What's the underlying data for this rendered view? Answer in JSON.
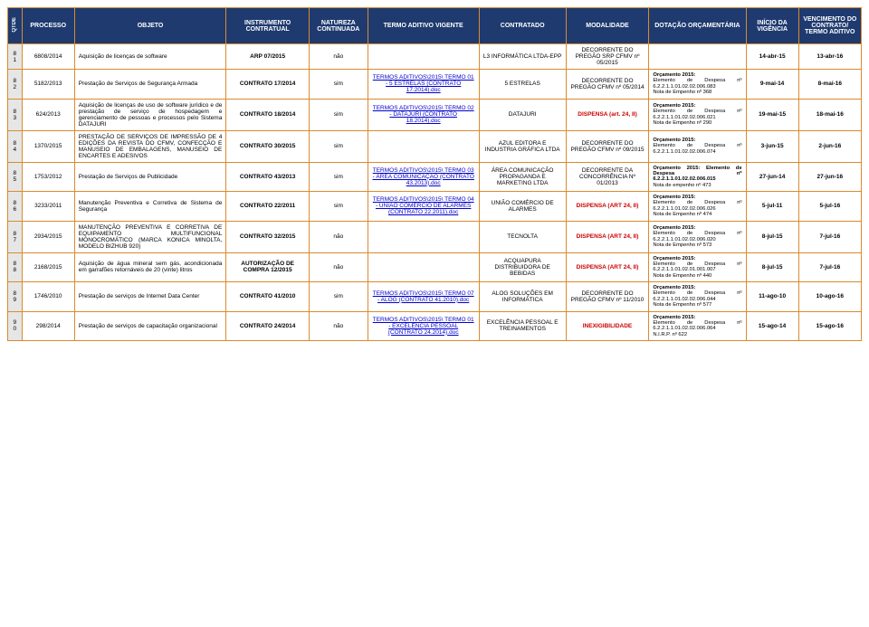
{
  "headers": {
    "qtde": "QTDE",
    "processo": "PROCESSO",
    "objeto": "OBJETO",
    "instrumento": "INSTRUMENTO CONTRATUAL",
    "natureza": "NATUREZA CONTINUADA",
    "termo": "TERMO ADITIVO VIGENTE",
    "contratado": "CONTRATADO",
    "modalidade": "MODALIDADE",
    "dotacao": "DOTAÇÃO ORÇAMENTÁRIA",
    "inicio": "INÍCIO DA VIGÊNCIA",
    "vencimento": "VENCIMENTO DO CONTRATO/ TERMO ADITIVO"
  },
  "rows": [
    {
      "n": "81",
      "proc": "6808/2014",
      "obj": "Aquisição de licenças de software",
      "instr": "ARP 07/2015",
      "nat": "não",
      "termo": "",
      "contr": "L3 INFORMÁTICA LTDA-EPP",
      "modal": "DECORRENTE DO PREGÃO SRP CFMV nº 05/2015",
      "dota": "",
      "inic": "14-abr-15",
      "venc": "13-abr-16"
    },
    {
      "n": "82",
      "proc": "5182/2013",
      "obj": "Prestação de Serviços de Segurança Armada",
      "instr": "CONTRATO 17/2014",
      "nat": "sim",
      "termo": "TERMOS ADITIVOS\\2015\\ TERMO 01 - 5 ESTRELAS (CONTRATO 17.2014).doc",
      "contr": "5 ESTRELAS",
      "modal": "DECORRENTE DO PREGÃO CFMV nº 05/2014",
      "dota": "Orçamento 2015:\nElemento de Despesa nº 6.2.2.1.1.01.02.02.006.083\nNota de Empenho nº 368",
      "inic": "9-mai-14",
      "venc": "8-mai-16"
    },
    {
      "n": "83",
      "proc": "624/2013",
      "obj": "Aquisição de licenças de uso de software jurídico e de prestação de serviço de hospedagem e gerenciamento de pessoas e processos pelo Sistema DATAJURI",
      "instr": "CONTRATO 18/2014",
      "nat": "sim",
      "termo": "TERMOS ADITIVOS\\2015\\ TERMO 02 - DATAJURI (CONTRATO 18.2014).doc",
      "contr": "DATAJURI",
      "modal": "DISPENSA (art. 24, II)",
      "dota": "Orçamento 2015:\nElemento de Despesa nº 6.2.2.1.1.01.02.02.006.021\nNota de Empenho nº 290",
      "inic": "19-mai-15",
      "venc": "18-mai-16"
    },
    {
      "n": "84",
      "proc": "1370/2015",
      "obj": "PRESTAÇÃO DE SERVIÇOS DE IMPRESSÃO DE 4 EDIÇÕES DA REVISTA DO CFMV, CONFECÇÃO E MANUSEIO DE EMBALAGENS, MANUSEIO DE ENCARTES E ADESIVOS",
      "instr": "CONTRATO 30/2015",
      "nat": "sim",
      "termo": "",
      "contr": "AZUL EDITORA E INDUSTRIA GRÁFICA LTDA",
      "modal": "DECORRENTE DO PREGÃO CFMV nº 09/2015",
      "dota": "Orçamento 2015:\nElemento de Despesa nº 6.2.2.1.1.01.02.02.006.074",
      "inic": "3-jun-15",
      "venc": "2-jun-16"
    },
    {
      "n": "85",
      "proc": "1753/2012",
      "obj": "Prestação de Serviços de Publicidade",
      "instr": "CONTRATO 43/2013",
      "nat": "sim",
      "termo": "TERMOS ADITIVOS\\2015\\ TERMO 03 - ÁREA COMUNICAÇÃO (CONTRATO 43.2013).doc",
      "contr": "ÁREA COMUNICAÇÃO PROPAGANDA E MARKETING LTDA",
      "modal": "DECORRENTE DA CONCORRÊNCIA Nº 01/2013",
      "dota": "Orçamento 2015: Elemento de Despesa nº 6.2.2.1.1.01.02.02.006.015\nNota de empenho nº 473",
      "inic": "27-jun-14",
      "venc": "27-jun-16"
    },
    {
      "n": "86",
      "proc": "3233/2011",
      "obj": "Manutenção Preventiva e Corretiva de Sistema de Segurança",
      "instr": "CONTRATO 22/2011",
      "nat": "sim",
      "termo": "TERMOS ADITIVOS\\2015\\ TERMO 04 - UNIÃO COMÉRCIO DE ALARMES (CONTRATO 22.2011).doc",
      "contr": "UNIÃO COMÉRCIO DE ALARMES",
      "modal": "DISPENSA (ART 24, II)",
      "dota": "Orçamento 2015:\nElemento de Despesa nº 6.2.2.1.1.01.02.02.006.026\nNota de Empenho nº 474",
      "inic": "5-jul-11",
      "venc": "5-jul-16"
    },
    {
      "n": "87",
      "proc": "2934/2015",
      "obj": "MANUTENÇÃO PREVENTIVA E CORRETIVA DE EQUIPAMENTO MULTIFUNCIONAL MONOCROMÁTICO (MARCA KONICA MINOLTA, MODELO BIZHUB 920)",
      "instr": "CONTRATO 32/2015",
      "nat": "não",
      "termo": "",
      "contr": "TECNOLTA",
      "modal": "DISPENSA (ART 24, II)",
      "dota": "Orçamento 2015:\nElemento de Despesa nº 6.2.2.1.1.01.02.02.006.020\nNota de Empenho nº 573",
      "inic": "8-jul-15",
      "venc": "7-jul-16"
    },
    {
      "n": "88",
      "proc": "2168/2015",
      "obj": "Aquisição de água mineral sem gás, acondicionada em garrafões retornáveis de 20 (vinte) litros",
      "instr": "AUTORIZAÇÃO DE COMPRA 12/2015",
      "nat": "não",
      "termo": "",
      "contr": "ACQUAPURA DISTRIBUIDORA DE BEBIDAS",
      "modal": "DISPENSA (ART 24, II)",
      "dota": "Orçamento 2015:\nElemento de Despesa nº 6.2.2.1.1.01.02.01.001.007\nNota de Empenho nº 440",
      "inic": "8-jul-15",
      "venc": "7-jul-16"
    },
    {
      "n": "89",
      "proc": "1746/2010",
      "obj": "Prestação de serviços de Internet Data Center",
      "instr": "CONTRATO 41/2010",
      "nat": "sim",
      "termo": "TERMOS ADITIVOS\\2015\\ TERMO 07 - ALOG (CONTRATO 41.2010).doc",
      "contr": "ALOG SOLUÇÕES EM INFORMÁTICA",
      "modal": "DECORRENTE DO PREGÃO CFMV nº 11/2010",
      "dota": "Orçamento 2015:\nElemento de Despesa nº 6.2.2.1.1.01.02.02.006.044\nNota de Empenho nº 577",
      "inic": "11-ago-10",
      "venc": "10-ago-16"
    },
    {
      "n": "90",
      "proc": "298/2014",
      "obj": "Prestação de serviços de capacitação organizacional",
      "instr": "CONTRATO 24/2014",
      "nat": "não",
      "termo": "TERMOS ADITIVOS\\2015\\ TERMO 01 - EXCELÊNCIA PESSOAL (CONTRATO 24.2014).doc",
      "contr": "EXCELÊNCIA PESSOAL E TREINAMENTOS",
      "modal": "INEXIGIBILIDADE",
      "dota": "Orçamento 2015:\nElemento de Despesa nº 6.2.2.1.1.01.02.02.006.064\nN.I.R.P. nº 622",
      "inic": "15-ago-14",
      "venc": "15-ago-16"
    }
  ],
  "style": {
    "header_bg": "#1f3a6f",
    "header_fg": "#ffffff",
    "border": "#d98b2e",
    "link": "#0000cc",
    "red": "#cc0000",
    "red_modals": [
      "DISPENSA (art. 24, II)",
      "DISPENSA (ART 24, II)",
      "INEXIGIBILIDADE"
    ]
  }
}
